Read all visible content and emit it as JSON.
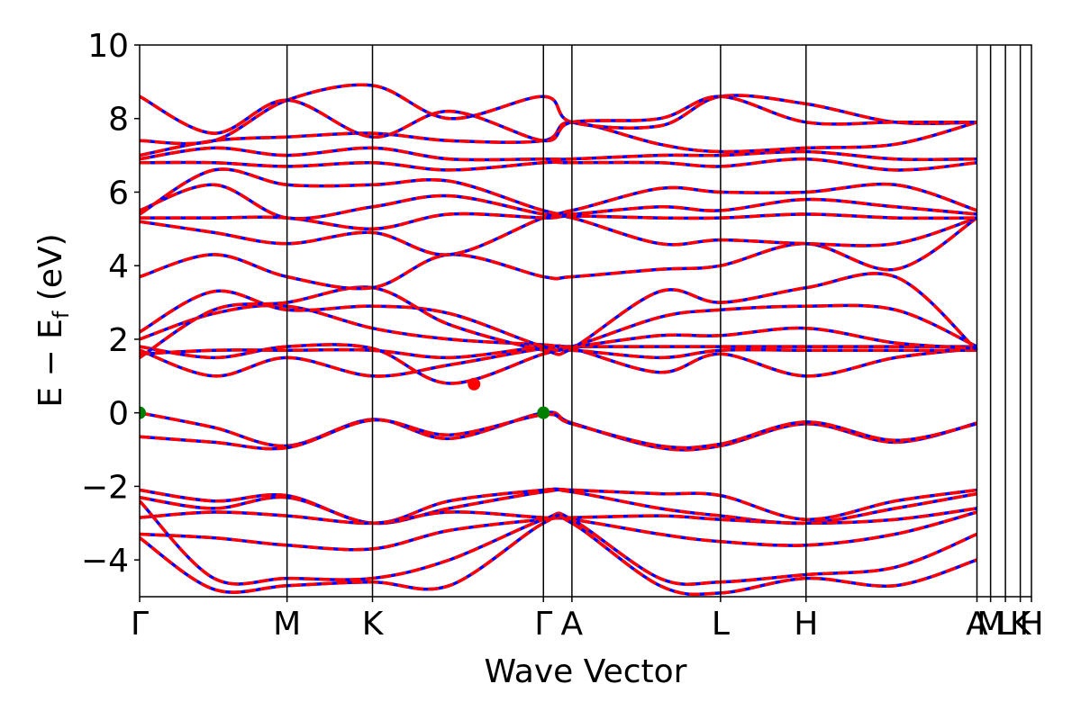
{
  "chart_data": {
    "type": "line",
    "title": "",
    "xlabel": "Wave Vector",
    "ylabel": {
      "main": "E − E",
      "sub": "f",
      "unit": " (eV)"
    },
    "ylim": [
      -5,
      10
    ],
    "yticks": [
      -4,
      -2,
      0,
      2,
      4,
      6,
      8,
      10
    ],
    "ytick_labels": [
      "−4",
      "−2",
      "0",
      "2",
      "4",
      "6",
      "8",
      "10"
    ],
    "xlim": [
      0,
      7.2
    ],
    "kpath": [
      {
        "label": "Γ",
        "x": 0.0
      },
      {
        "label": "M",
        "x": 1.19
      },
      {
        "label": "K",
        "x": 1.88
      },
      {
        "label": "Γ",
        "x": 3.26
      },
      {
        "label": "A",
        "x": 3.49
      },
      {
        "label": "L",
        "x": 4.69
      },
      {
        "label": "H",
        "x": 5.38
      },
      {
        "label": "A",
        "x": 6.76
      },
      {
        "label": "M",
        "x": 6.87
      },
      {
        "label": "L",
        "x": 6.99
      },
      {
        "label": "K",
        "x": 7.11
      },
      {
        "label": "H",
        "x": 7.2
      }
    ],
    "grid": false,
    "series_styles": [
      {
        "role": "solid",
        "color": "#0000ff",
        "dash": "solid"
      },
      {
        "role": "dashed",
        "color": "#ff0000",
        "dash": "dashed"
      }
    ],
    "bands": [
      {
        "pts": [
          [
            0,
            0.0
          ],
          [
            0.6,
            -0.4
          ],
          [
            1.19,
            -0.9
          ],
          [
            1.88,
            -0.18
          ],
          [
            2.5,
            -0.7
          ],
          [
            3.26,
            0.0
          ],
          [
            3.49,
            -0.28
          ],
          [
            4.2,
            -0.95
          ],
          [
            4.69,
            -0.9
          ],
          [
            5.38,
            -0.3
          ],
          [
            6.1,
            -0.8
          ],
          [
            6.76,
            -0.28
          ]
        ]
      },
      {
        "pts": [
          [
            0,
            -0.65
          ],
          [
            0.6,
            -0.8
          ],
          [
            1.19,
            -0.95
          ],
          [
            1.88,
            -0.2
          ],
          [
            2.5,
            -0.6
          ],
          [
            3.26,
            -0.05
          ],
          [
            3.49,
            -0.3
          ],
          [
            4.2,
            -0.9
          ],
          [
            4.69,
            -0.85
          ],
          [
            5.38,
            -0.25
          ],
          [
            6.1,
            -0.75
          ],
          [
            6.76,
            -0.3
          ]
        ]
      },
      {
        "pts": [
          [
            0,
            -2.1
          ],
          [
            0.6,
            -2.4
          ],
          [
            1.19,
            -2.25
          ],
          [
            1.88,
            -3.0
          ],
          [
            2.5,
            -2.4
          ],
          [
            3.26,
            -2.1
          ],
          [
            3.49,
            -2.1
          ],
          [
            4.2,
            -2.2
          ],
          [
            4.69,
            -2.25
          ],
          [
            5.38,
            -2.9
          ],
          [
            6.1,
            -2.4
          ],
          [
            6.76,
            -2.1
          ]
        ]
      },
      {
        "pts": [
          [
            0,
            -2.3
          ],
          [
            0.6,
            -2.6
          ],
          [
            1.19,
            -2.3
          ],
          [
            1.88,
            -3.0
          ],
          [
            2.5,
            -2.6
          ],
          [
            3.26,
            -2.15
          ],
          [
            3.49,
            -2.15
          ],
          [
            4.2,
            -2.6
          ],
          [
            4.69,
            -2.8
          ],
          [
            5.38,
            -3.0
          ],
          [
            6.1,
            -2.6
          ],
          [
            6.76,
            -2.2
          ]
        ]
      },
      {
        "pts": [
          [
            0,
            -2.85
          ],
          [
            0.6,
            -2.7
          ],
          [
            1.19,
            -2.8
          ],
          [
            1.88,
            -3.0
          ],
          [
            2.5,
            -2.7
          ],
          [
            3.26,
            -2.85
          ],
          [
            3.49,
            -2.85
          ],
          [
            4.2,
            -2.8
          ],
          [
            4.69,
            -2.9
          ],
          [
            5.38,
            -3.0
          ],
          [
            6.1,
            -2.9
          ],
          [
            6.76,
            -2.6
          ]
        ]
      },
      {
        "pts": [
          [
            0,
            -3.3
          ],
          [
            0.6,
            -3.4
          ],
          [
            1.19,
            -3.6
          ],
          [
            1.88,
            -3.7
          ],
          [
            2.5,
            -3.2
          ],
          [
            3.26,
            -2.9
          ],
          [
            3.49,
            -2.9
          ],
          [
            4.2,
            -3.3
          ],
          [
            4.69,
            -3.5
          ],
          [
            5.38,
            -3.6
          ],
          [
            6.1,
            -3.3
          ],
          [
            6.76,
            -2.7
          ]
        ]
      },
      {
        "pts": [
          [
            0,
            -2.4
          ],
          [
            0.6,
            -4.5
          ],
          [
            1.19,
            -4.5
          ],
          [
            1.88,
            -4.5
          ],
          [
            2.5,
            -4.0
          ],
          [
            3.26,
            -2.9
          ],
          [
            3.49,
            -2.9
          ],
          [
            4.2,
            -4.5
          ],
          [
            4.69,
            -4.6
          ],
          [
            5.38,
            -4.4
          ],
          [
            6.1,
            -4.2
          ],
          [
            6.76,
            -3.3
          ]
        ]
      },
      {
        "pts": [
          [
            0,
            -3.4
          ],
          [
            0.6,
            -4.8
          ],
          [
            1.19,
            -4.7
          ],
          [
            1.88,
            -4.6
          ],
          [
            2.5,
            -4.7
          ],
          [
            3.26,
            -3.0
          ],
          [
            3.49,
            -3.0
          ],
          [
            4.2,
            -4.7
          ],
          [
            4.69,
            -4.9
          ],
          [
            5.38,
            -4.5
          ],
          [
            6.1,
            -4.7
          ],
          [
            6.76,
            -4.0
          ]
        ]
      },
      {
        "pts": [
          [
            0,
            1.7
          ],
          [
            0.6,
            1.0
          ],
          [
            1.19,
            1.5
          ],
          [
            1.88,
            1.0
          ],
          [
            2.5,
            1.3
          ],
          [
            3.26,
            1.75
          ],
          [
            3.49,
            1.75
          ],
          [
            4.2,
            1.1
          ],
          [
            4.69,
            1.6
          ],
          [
            5.38,
            1.0
          ],
          [
            6.1,
            1.5
          ],
          [
            6.76,
            1.75
          ]
        ]
      },
      {
        "pts": [
          [
            0,
            1.8
          ],
          [
            0.6,
            1.5
          ],
          [
            1.19,
            1.8
          ],
          [
            1.88,
            1.75
          ],
          [
            2.5,
            0.8
          ],
          [
            3.26,
            1.6
          ],
          [
            3.49,
            1.7
          ],
          [
            4.2,
            1.5
          ],
          [
            4.69,
            1.7
          ],
          [
            5.38,
            1.7
          ],
          [
            6.1,
            1.7
          ],
          [
            6.76,
            1.7
          ]
        ]
      },
      {
        "pts": [
          [
            0,
            1.6
          ],
          [
            0.6,
            1.7
          ],
          [
            1.19,
            1.7
          ],
          [
            1.88,
            1.7
          ],
          [
            2.5,
            1.5
          ],
          [
            3.26,
            1.8
          ],
          [
            3.49,
            1.8
          ],
          [
            4.2,
            1.8
          ],
          [
            4.69,
            1.8
          ],
          [
            5.38,
            1.8
          ],
          [
            6.1,
            1.8
          ],
          [
            6.76,
            1.8
          ]
        ]
      },
      {
        "pts": [
          [
            0,
            2.0
          ],
          [
            0.6,
            2.7
          ],
          [
            1.19,
            2.9
          ],
          [
            1.88,
            2.3
          ],
          [
            2.5,
            2.0
          ],
          [
            3.26,
            1.85
          ],
          [
            3.49,
            1.8
          ],
          [
            4.2,
            2.1
          ],
          [
            4.69,
            2.1
          ],
          [
            5.38,
            2.3
          ],
          [
            6.1,
            1.9
          ],
          [
            6.76,
            1.75
          ]
        ]
      },
      {
        "pts": [
          [
            0,
            2.2
          ],
          [
            0.6,
            3.3
          ],
          [
            1.19,
            2.8
          ],
          [
            1.88,
            2.9
          ],
          [
            2.5,
            2.7
          ],
          [
            3.26,
            1.8
          ],
          [
            3.49,
            1.8
          ],
          [
            4.2,
            2.6
          ],
          [
            4.69,
            2.8
          ],
          [
            5.38,
            2.9
          ],
          [
            6.1,
            2.8
          ],
          [
            6.76,
            1.8
          ]
        ]
      },
      {
        "pts": [
          [
            0,
            1.5
          ],
          [
            0.6,
            2.8
          ],
          [
            1.19,
            3.0
          ],
          [
            1.88,
            3.4
          ],
          [
            2.5,
            2.4
          ],
          [
            3.26,
            1.7
          ],
          [
            3.49,
            1.75
          ],
          [
            4.2,
            3.3
          ],
          [
            4.69,
            3.0
          ],
          [
            5.38,
            3.4
          ],
          [
            6.1,
            3.7
          ],
          [
            6.76,
            1.7
          ]
        ]
      },
      {
        "pts": [
          [
            0,
            3.7
          ],
          [
            0.6,
            4.3
          ],
          [
            1.19,
            3.7
          ],
          [
            1.88,
            3.4
          ],
          [
            2.5,
            4.3
          ],
          [
            3.26,
            3.7
          ],
          [
            3.49,
            3.7
          ],
          [
            4.2,
            3.9
          ],
          [
            4.69,
            4.0
          ],
          [
            5.38,
            4.6
          ],
          [
            6.1,
            3.9
          ],
          [
            6.76,
            5.3
          ]
        ]
      },
      {
        "pts": [
          [
            0,
            5.2
          ],
          [
            0.6,
            4.9
          ],
          [
            1.19,
            4.6
          ],
          [
            1.88,
            4.9
          ],
          [
            2.5,
            4.3
          ],
          [
            3.26,
            5.3
          ],
          [
            3.49,
            5.3
          ],
          [
            4.2,
            4.6
          ],
          [
            4.69,
            4.7
          ],
          [
            5.38,
            4.6
          ],
          [
            6.1,
            4.6
          ],
          [
            6.76,
            5.3
          ]
        ]
      },
      {
        "pts": [
          [
            0,
            5.3
          ],
          [
            0.6,
            5.3
          ],
          [
            1.19,
            5.3
          ],
          [
            1.88,
            5.0
          ],
          [
            2.5,
            5.4
          ],
          [
            3.26,
            5.3
          ],
          [
            3.49,
            5.35
          ],
          [
            4.2,
            5.3
          ],
          [
            4.69,
            5.3
          ],
          [
            5.38,
            5.4
          ],
          [
            6.1,
            5.3
          ],
          [
            6.76,
            5.3
          ]
        ]
      },
      {
        "pts": [
          [
            0,
            5.5
          ],
          [
            0.6,
            6.2
          ],
          [
            1.19,
            5.3
          ],
          [
            1.88,
            5.6
          ],
          [
            2.5,
            5.9
          ],
          [
            3.26,
            5.4
          ],
          [
            3.49,
            5.4
          ],
          [
            4.2,
            5.6
          ],
          [
            4.69,
            5.5
          ],
          [
            5.38,
            5.8
          ],
          [
            6.1,
            5.6
          ],
          [
            6.76,
            5.4
          ]
        ]
      },
      {
        "pts": [
          [
            0,
            5.4
          ],
          [
            0.6,
            6.6
          ],
          [
            1.19,
            6.2
          ],
          [
            1.88,
            6.2
          ],
          [
            2.5,
            6.3
          ],
          [
            3.26,
            5.5
          ],
          [
            3.49,
            5.5
          ],
          [
            4.2,
            6.1
          ],
          [
            4.69,
            6.0
          ],
          [
            5.38,
            6.0
          ],
          [
            6.1,
            6.2
          ],
          [
            6.76,
            5.5
          ]
        ]
      },
      {
        "pts": [
          [
            0,
            6.8
          ],
          [
            0.6,
            6.8
          ],
          [
            1.19,
            6.7
          ],
          [
            1.88,
            6.8
          ],
          [
            2.5,
            6.6
          ],
          [
            3.26,
            6.8
          ],
          [
            3.49,
            6.8
          ],
          [
            4.2,
            6.8
          ],
          [
            4.69,
            6.7
          ],
          [
            5.38,
            6.9
          ],
          [
            6.1,
            6.6
          ],
          [
            6.76,
            6.8
          ]
        ]
      },
      {
        "pts": [
          [
            0,
            6.9
          ],
          [
            0.6,
            7.2
          ],
          [
            1.19,
            7.0
          ],
          [
            1.88,
            7.2
          ],
          [
            2.5,
            6.9
          ],
          [
            3.26,
            6.9
          ],
          [
            3.49,
            6.9
          ],
          [
            4.2,
            7.0
          ],
          [
            4.69,
            7.0
          ],
          [
            5.38,
            7.1
          ],
          [
            6.1,
            6.9
          ],
          [
            6.76,
            6.9
          ]
        ]
      },
      {
        "pts": [
          [
            0,
            7.0
          ],
          [
            0.6,
            7.4
          ],
          [
            1.19,
            7.5
          ],
          [
            1.88,
            7.6
          ],
          [
            2.5,
            7.4
          ],
          [
            3.26,
            7.4
          ],
          [
            3.49,
            7.9
          ],
          [
            4.2,
            7.3
          ],
          [
            4.69,
            7.1
          ],
          [
            5.38,
            7.2
          ],
          [
            6.1,
            7.3
          ],
          [
            6.76,
            7.9
          ]
        ]
      },
      {
        "pts": [
          [
            0,
            7.4
          ],
          [
            0.6,
            7.4
          ],
          [
            1.19,
            8.5
          ],
          [
            1.88,
            8.9
          ],
          [
            2.5,
            8.0
          ],
          [
            3.26,
            8.6
          ],
          [
            3.49,
            7.9
          ],
          [
            4.2,
            7.8
          ],
          [
            4.69,
            8.6
          ],
          [
            5.38,
            8.4
          ],
          [
            6.1,
            7.9
          ],
          [
            6.76,
            7.9
          ]
        ]
      },
      {
        "pts": [
          [
            0,
            8.6
          ],
          [
            0.6,
            7.6
          ],
          [
            1.19,
            8.5
          ],
          [
            1.88,
            7.5
          ],
          [
            2.5,
            8.2
          ],
          [
            3.26,
            7.4
          ],
          [
            3.49,
            7.9
          ],
          [
            4.2,
            8.0
          ],
          [
            4.69,
            8.6
          ],
          [
            5.38,
            7.9
          ],
          [
            6.1,
            7.9
          ],
          [
            6.76,
            7.9
          ]
        ]
      }
    ],
    "markers": [
      {
        "x": 0.0,
        "y": 0.0,
        "color": "#007f00"
      },
      {
        "x": 3.26,
        "y": 0.0,
        "color": "#007f00"
      },
      {
        "x": 2.7,
        "y": 0.78,
        "color": "#ff0000"
      }
    ]
  }
}
